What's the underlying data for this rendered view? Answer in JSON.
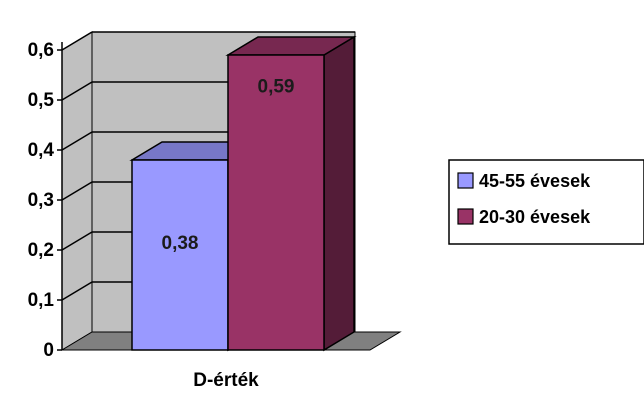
{
  "chart_data": {
    "type": "bar",
    "categories": [
      "D-érték"
    ],
    "series": [
      {
        "name": "45-55 évesek",
        "values": [
          0.38
        ],
        "color": "#9999ff",
        "data_label": "0,38"
      },
      {
        "name": "20-30 évesek",
        "values": [
          0.59
        ],
        "color": "#993366",
        "data_label": "0,59"
      }
    ],
    "ylim": [
      0,
      0.6
    ],
    "yticks": [
      0,
      0.1,
      0.2,
      0.3,
      0.4,
      0.5,
      0.6
    ],
    "ytick_labels": [
      "0",
      "0,1",
      "0,2",
      "0,3",
      "0,4",
      "0,5",
      "0,6"
    ],
    "grid": true,
    "three_d": true,
    "legend_position": "right",
    "wall_color": "#c0c0c0",
    "floor_color": "#808080"
  }
}
